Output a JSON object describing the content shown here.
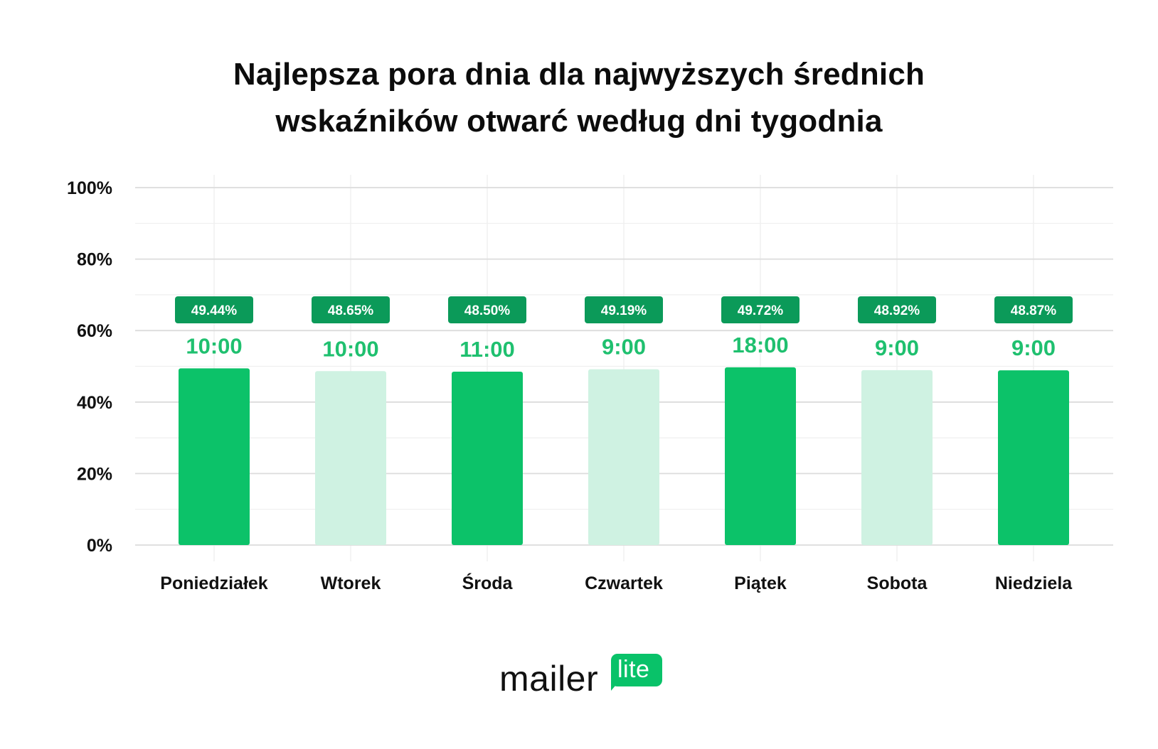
{
  "title": {
    "line1": "Najlepsza pora dnia dla najwyższych średnich",
    "line2": "wskaźników otwarć według dni tygodnia"
  },
  "colors": {
    "bar_dark": "#0cc269",
    "bar_light": "#cff2e2",
    "badge": "#0b9a59",
    "time_text": "#1fc06f",
    "grid": "#e3e3e3"
  },
  "chart_data": {
    "type": "bar",
    "categories": [
      "Poniedziałek",
      "Wtorek",
      "Środa",
      "Czwartek",
      "Piątek",
      "Sobota",
      "Niedziela"
    ],
    "values": [
      49.44,
      48.65,
      48.5,
      49.19,
      49.72,
      48.92,
      48.87
    ],
    "value_labels": [
      "49.44%",
      "48.65%",
      "48.50%",
      "49.19%",
      "49.72%",
      "48.92%",
      "48.87%"
    ],
    "times": [
      "10:00",
      "10:00",
      "11:00",
      "9:00",
      "18:00",
      "9:00",
      "9:00"
    ],
    "bar_shade": [
      "dark",
      "light",
      "dark",
      "light",
      "dark",
      "light",
      "dark"
    ],
    "y_ticks": [
      "0%",
      "20%",
      "40%",
      "60%",
      "80%",
      "100%"
    ],
    "ylim": [
      0,
      100
    ],
    "grid": true,
    "xlabel": "",
    "ylabel": ""
  },
  "logo": {
    "word": "mailer",
    "badge": "lite"
  }
}
